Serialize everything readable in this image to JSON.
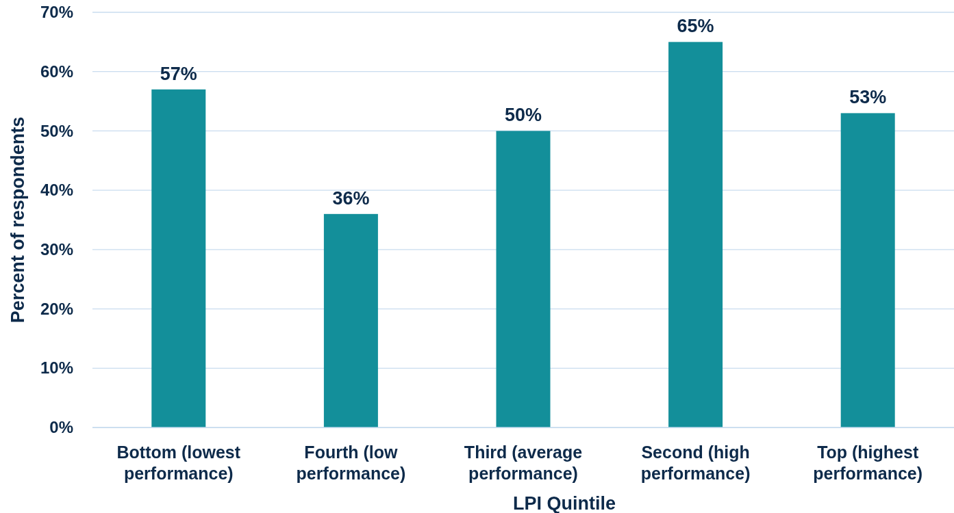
{
  "chart_data": {
    "type": "bar",
    "xlabel": "LPI Quintile",
    "ylabel": "Percent of respondents",
    "categories": [
      "Bottom (lowest performance)",
      "Fourth (low performance)",
      "Third (average performance)",
      "Second (high performance)",
      "Top (highest performance)"
    ],
    "values": [
      57,
      36,
      50,
      65,
      53
    ],
    "value_labels": [
      "57%",
      "36%",
      "50%",
      "65%",
      "53%"
    ],
    "color": "#138f9a",
    "ylim": [
      0,
      70
    ],
    "yticks": [
      {
        "value": 0,
        "label": "0%"
      },
      {
        "value": 10,
        "label": "10%"
      },
      {
        "value": 20,
        "label": "20%"
      },
      {
        "value": 30,
        "label": "30%"
      },
      {
        "value": 40,
        "label": "40%"
      },
      {
        "value": 50,
        "label": "50%"
      },
      {
        "value": 60,
        "label": "60%"
      },
      {
        "value": 70,
        "label": "70%"
      }
    ],
    "grid": "y"
  }
}
